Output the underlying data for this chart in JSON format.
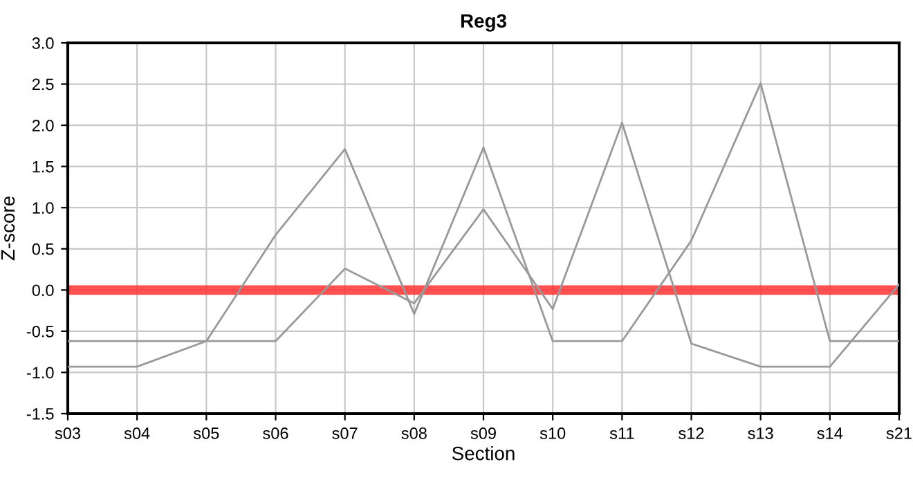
{
  "chart_data": {
    "type": "line",
    "title": "Reg3",
    "xlabel": "Section",
    "ylabel": "Z-score",
    "categories": [
      "s03",
      "s04",
      "s05",
      "s06",
      "s07",
      "s08",
      "s09",
      "s10",
      "s11",
      "s12",
      "s13",
      "s14",
      "s21"
    ],
    "series": [
      {
        "color": "#999999",
        "values": [
          -0.93,
          -0.93,
          -0.62,
          0.67,
          1.71,
          -0.29,
          1.73,
          -0.62,
          -0.62,
          0.6,
          2.51,
          -0.62,
          -0.62
        ]
      },
      {
        "color": "#999999",
        "values": [
          -0.62,
          -0.62,
          -0.62,
          -0.62,
          0.26,
          -0.16,
          0.98,
          -0.23,
          2.03,
          -0.65,
          -0.93,
          -0.93,
          0.07
        ]
      }
    ],
    "ylim": [
      -1.5,
      3.0
    ],
    "yticks": [
      {
        "value": -1.5,
        "label": "-1.5"
      },
      {
        "value": -1.0,
        "label": "-1.0"
      },
      {
        "value": -0.5,
        "label": "-0.5"
      },
      {
        "value": 0.0,
        "label": "0.0"
      },
      {
        "value": 0.5,
        "label": "0.5"
      },
      {
        "value": 1.0,
        "label": "1.0"
      },
      {
        "value": 1.5,
        "label": "1.5"
      },
      {
        "value": 2.0,
        "label": "2.0"
      },
      {
        "value": 2.5,
        "label": "2.5"
      },
      {
        "value": 3.0,
        "label": "3.0"
      }
    ],
    "ref_lines": [
      {
        "axis": "y",
        "value": 0,
        "color": "#ff3333"
      }
    ],
    "grid": true,
    "legend": false,
    "marker": "none",
    "line_style": "solid"
  }
}
